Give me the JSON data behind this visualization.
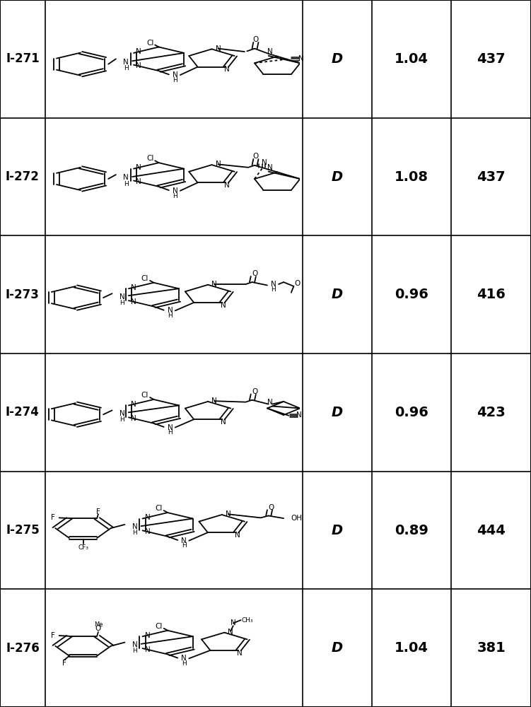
{
  "rows": [
    {
      "id": "I-271",
      "col3": "D",
      "col4": "1.04",
      "col5": "437"
    },
    {
      "id": "I-272",
      "col3": "D",
      "col4": "1.08",
      "col5": "437"
    },
    {
      "id": "I-273",
      "col3": "D",
      "col4": "0.96",
      "col5": "416"
    },
    {
      "id": "I-274",
      "col3": "D",
      "col4": "0.96",
      "col5": "423"
    },
    {
      "id": "I-275",
      "col3": "D",
      "col4": "0.89",
      "col5": "444"
    },
    {
      "id": "I-276",
      "col3": "D",
      "col4": "1.04",
      "col5": "381"
    }
  ],
  "bg_color": "#ffffff",
  "line_color": "#000000",
  "text_color": "#000000",
  "id_fontsize": 12,
  "data_fontsize": 14
}
